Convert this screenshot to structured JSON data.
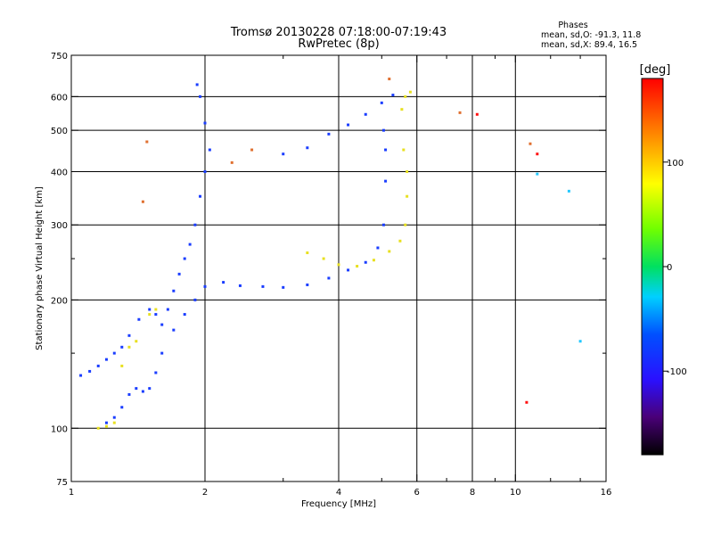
{
  "header": {
    "title": "Tromsø 20130228 07:18:00-07:19:43",
    "subtitle": "RwPretec (8p)"
  },
  "stats": {
    "heading": "Phases",
    "line1": "mean, sd,O: -91.3, 11.8",
    "line2": "mean, sd,X:  89.4, 16.5"
  },
  "colorbar": {
    "label": "[deg]",
    "range": [
      -180,
      180
    ],
    "ticks": [
      {
        "value": 100,
        "label": "100"
      },
      {
        "value": 0,
        "label": "0"
      },
      {
        "value": -100,
        "label": "-100"
      }
    ]
  },
  "chart_data": {
    "type": "scatter",
    "title": "Tromsø 20130228 07:18:00-07:19:43",
    "subtitle": "RwPretec (8p)",
    "xlabel": "Frequency [MHz]",
    "ylabel": "Stationary phase Virtual Height [km]",
    "x_scale": "log",
    "y_scale": "log",
    "xlim": [
      1,
      16
    ],
    "ylim": [
      75,
      750
    ],
    "x_ticks": [
      {
        "value": 1,
        "label": "1"
      },
      {
        "value": 2,
        "label": "2"
      },
      {
        "value": 4,
        "label": "4"
      },
      {
        "value": 6,
        "label": "6"
      },
      {
        "value": 8,
        "label": "8"
      },
      {
        "value": 10,
        "label": "10"
      },
      {
        "value": 16,
        "label": "16"
      }
    ],
    "x_minor_ticks": [
      3,
      5,
      7,
      9,
      12,
      14
    ],
    "x_grid": [
      2,
      4,
      6,
      8,
      10
    ],
    "y_ticks": [
      75,
      100,
      200,
      300,
      400,
      500,
      600,
      750
    ],
    "y_minor_ticks": [
      150,
      250
    ],
    "y_grid": [
      100,
      200,
      300,
      400,
      500,
      600
    ],
    "color_encodes": "phase [deg]",
    "series": [
      {
        "color": "#1a3dff",
        "points": [
          [
            1.05,
            133
          ],
          [
            1.1,
            136
          ],
          [
            1.15,
            140
          ],
          [
            1.2,
            145
          ],
          [
            1.25,
            150
          ],
          [
            1.3,
            155
          ],
          [
            1.35,
            165
          ],
          [
            1.42,
            180
          ],
          [
            1.5,
            190
          ],
          [
            1.55,
            185
          ],
          [
            1.6,
            175
          ],
          [
            1.65,
            190
          ],
          [
            1.7,
            210
          ],
          [
            1.75,
            230
          ],
          [
            1.8,
            250
          ],
          [
            1.85,
            270
          ],
          [
            1.9,
            300
          ],
          [
            1.95,
            350
          ],
          [
            2.0,
            400
          ],
          [
            2.05,
            450
          ],
          [
            2.0,
            520
          ],
          [
            1.95,
            600
          ],
          [
            1.92,
            640
          ]
        ]
      },
      {
        "color": "#1a3dff",
        "points": [
          [
            1.2,
            103
          ],
          [
            1.25,
            106
          ],
          [
            1.3,
            112
          ],
          [
            1.35,
            120
          ],
          [
            1.4,
            124
          ],
          [
            1.45,
            122
          ],
          [
            1.5,
            124
          ],
          [
            1.55,
            135
          ],
          [
            1.6,
            150
          ],
          [
            1.7,
            170
          ],
          [
            1.8,
            185
          ],
          [
            1.9,
            200
          ],
          [
            2.0,
            215
          ],
          [
            2.2,
            220
          ],
          [
            2.4,
            216
          ],
          [
            2.7,
            215
          ],
          [
            3.0,
            214
          ],
          [
            3.4,
            217
          ],
          [
            3.8,
            225
          ],
          [
            4.2,
            235
          ],
          [
            4.6,
            245
          ],
          [
            4.9,
            265
          ],
          [
            5.05,
            300
          ],
          [
            5.1,
            380
          ],
          [
            5.1,
            450
          ],
          [
            5.05,
            500
          ]
        ]
      },
      {
        "color": "#1a3dff",
        "points": [
          [
            3.0,
            440
          ],
          [
            3.4,
            455
          ],
          [
            3.8,
            490
          ],
          [
            4.2,
            515
          ],
          [
            4.6,
            545
          ],
          [
            5.0,
            580
          ],
          [
            5.3,
            605
          ]
        ]
      },
      {
        "color": "#e8e020",
        "points": [
          [
            1.15,
            100
          ],
          [
            1.2,
            101
          ],
          [
            1.25,
            103
          ],
          [
            1.3,
            140
          ],
          [
            1.35,
            155
          ],
          [
            1.4,
            160
          ],
          [
            1.5,
            185
          ],
          [
            1.55,
            190
          ]
        ]
      },
      {
        "color": "#e8e020",
        "points": [
          [
            3.4,
            258
          ],
          [
            3.7,
            250
          ],
          [
            4.0,
            242
          ],
          [
            4.4,
            240
          ],
          [
            4.8,
            248
          ],
          [
            5.2,
            260
          ],
          [
            5.5,
            275
          ],
          [
            5.65,
            300
          ],
          [
            5.7,
            350
          ],
          [
            5.7,
            400
          ],
          [
            5.6,
            450
          ],
          [
            5.55,
            560
          ],
          [
            5.65,
            600
          ],
          [
            5.8,
            615
          ]
        ]
      },
      {
        "color": "#e07030",
        "points": [
          [
            1.45,
            340
          ],
          [
            1.48,
            470
          ],
          [
            2.3,
            420
          ],
          [
            7.5,
            550
          ],
          [
            10.8,
            465
          ],
          [
            5.2,
            660
          ],
          [
            2.55,
            450
          ]
        ]
      },
      {
        "color": "#ff1010",
        "points": [
          [
            8.2,
            545
          ],
          [
            11.2,
            440
          ],
          [
            10.6,
            115
          ]
        ]
      },
      {
        "color": "#22c8ff",
        "points": [
          [
            11.2,
            395
          ],
          [
            13.2,
            360
          ],
          [
            14.0,
            160
          ]
        ]
      }
    ]
  }
}
